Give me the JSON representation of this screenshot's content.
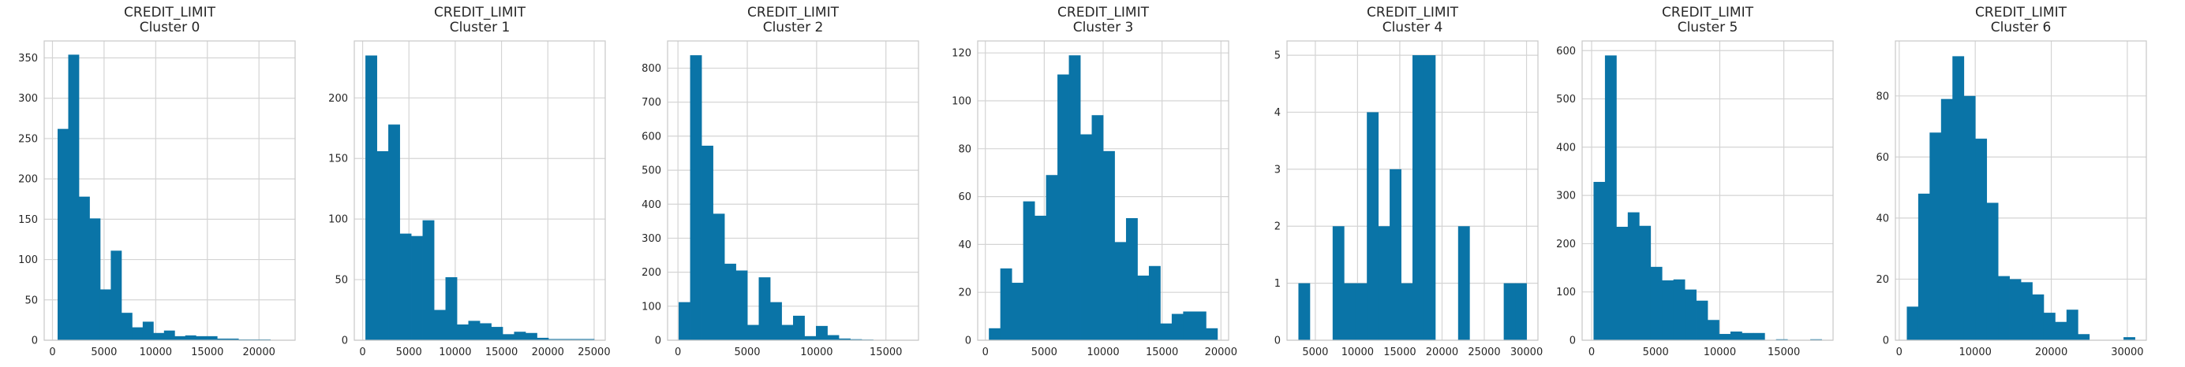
{
  "colors": {
    "bar": "#0a74a7",
    "grid": "#d4d4d4",
    "spine": "#c8c8c8",
    "background": "#ffffff"
  },
  "chart_data": [
    {
      "type": "bar",
      "title": "CREDIT_LIMIT",
      "subtitle": "Cluster 0",
      "grid": true,
      "bins": [
        [
          500,
          1530
        ],
        [
          1530,
          2560
        ],
        [
          2560,
          3590
        ],
        [
          3590,
          4620
        ],
        [
          4620,
          5650
        ],
        [
          5650,
          6680
        ],
        [
          6680,
          7710
        ],
        [
          7710,
          8740
        ],
        [
          8740,
          9770
        ],
        [
          9770,
          10800
        ],
        [
          10800,
          11830
        ],
        [
          11830,
          12860
        ],
        [
          12860,
          13890
        ],
        [
          13890,
          14920
        ],
        [
          14920,
          15950
        ],
        [
          15950,
          16980
        ],
        [
          16980,
          18010
        ],
        [
          18010,
          19040
        ],
        [
          19040,
          20070
        ],
        [
          20070,
          21100
        ]
      ],
      "values": [
        262,
        354,
        178,
        151,
        63,
        111,
        34,
        16,
        23,
        9,
        12,
        5,
        6,
        5,
        5,
        2,
        2,
        1,
        1,
        1
      ],
      "xlim": [
        -800,
        23500
      ],
      "ylim": [
        0,
        371
      ],
      "xticks": [
        0,
        5000,
        10000,
        15000,
        20000
      ],
      "yticks": [
        0,
        50,
        100,
        150,
        200,
        250,
        300,
        350
      ]
    },
    {
      "type": "bar",
      "title": "CREDIT_LIMIT",
      "subtitle": "Cluster 1",
      "grid": true,
      "bins": [
        [
          300,
          1535
        ],
        [
          1535,
          2770
        ],
        [
          2770,
          4005
        ],
        [
          4005,
          5240
        ],
        [
          5240,
          6475
        ],
        [
          6475,
          7710
        ],
        [
          7710,
          8945
        ],
        [
          8945,
          10180
        ],
        [
          10180,
          11415
        ],
        [
          11415,
          12650
        ],
        [
          12650,
          13885
        ],
        [
          13885,
          15120
        ],
        [
          15120,
          16355
        ],
        [
          16355,
          17590
        ],
        [
          17590,
          18825
        ],
        [
          18825,
          20060
        ],
        [
          20060,
          21295
        ],
        [
          21295,
          22530
        ],
        [
          22530,
          23765
        ],
        [
          23765,
          25000
        ]
      ],
      "values": [
        235,
        156,
        178,
        88,
        86,
        99,
        25,
        52,
        13,
        16,
        14,
        11,
        5,
        7,
        6,
        2,
        1,
        1,
        1,
        1
      ],
      "xlim": [
        -900,
        26200
      ],
      "ylim": [
        0,
        247
      ],
      "xticks": [
        0,
        5000,
        10000,
        15000,
        20000,
        25000
      ],
      "yticks": [
        0,
        50,
        100,
        150,
        200
      ]
    },
    {
      "type": "bar",
      "title": "CREDIT_LIMIT",
      "subtitle": "Cluster 2",
      "grid": true,
      "bins": [
        [
          50,
          875
        ],
        [
          875,
          1700
        ],
        [
          1700,
          2525
        ],
        [
          2525,
          3350
        ],
        [
          3350,
          4175
        ],
        [
          4175,
          5000
        ],
        [
          5000,
          5825
        ],
        [
          5825,
          6650
        ],
        [
          6650,
          7475
        ],
        [
          7475,
          8300
        ],
        [
          8300,
          9125
        ],
        [
          9125,
          9950
        ],
        [
          9950,
          10775
        ],
        [
          10775,
          11600
        ],
        [
          11600,
          12425
        ],
        [
          12425,
          13250
        ],
        [
          13250,
          14075
        ],
        [
          14075,
          14900
        ],
        [
          14900,
          15725
        ],
        [
          15725,
          16550
        ]
      ],
      "values": [
        112,
        838,
        572,
        372,
        225,
        205,
        45,
        185,
        112,
        45,
        72,
        12,
        42,
        15,
        5,
        3,
        2,
        1,
        0,
        1
      ],
      "xlim": [
        -750,
        17350
      ],
      "ylim": [
        0,
        880
      ],
      "xticks": [
        0,
        5000,
        10000,
        15000
      ],
      "yticks": [
        0,
        100,
        200,
        300,
        400,
        500,
        600,
        700,
        800
      ]
    },
    {
      "type": "bar",
      "title": "CREDIT_LIMIT",
      "subtitle": "Cluster 3",
      "grid": true,
      "bins": [
        [
          300,
          1270
        ],
        [
          1270,
          2240
        ],
        [
          2240,
          3210
        ],
        [
          3210,
          4180
        ],
        [
          4180,
          5150
        ],
        [
          5150,
          6120
        ],
        [
          6120,
          7090
        ],
        [
          7090,
          8060
        ],
        [
          8060,
          9030
        ],
        [
          9030,
          10000
        ],
        [
          10000,
          10970
        ],
        [
          10970,
          11940
        ],
        [
          11940,
          12910
        ],
        [
          12910,
          13880
        ],
        [
          13880,
          14850
        ],
        [
          14850,
          15820
        ],
        [
          15820,
          16790
        ],
        [
          16790,
          17760
        ],
        [
          17760,
          18730
        ],
        [
          18730,
          19700
        ]
      ],
      "values": [
        5,
        30,
        24,
        58,
        52,
        69,
        111,
        119,
        86,
        94,
        79,
        41,
        51,
        27,
        31,
        7,
        11,
        12,
        12,
        5
      ],
      "xlim": [
        -650,
        20650
      ],
      "ylim": [
        0,
        125
      ],
      "xticks": [
        0,
        5000,
        10000,
        15000,
        20000
      ],
      "yticks": [
        0,
        20,
        40,
        60,
        80,
        100,
        120
      ]
    },
    {
      "type": "bar",
      "title": "CREDIT_LIMIT",
      "subtitle": "Cluster 4",
      "grid": true,
      "bins": [
        [
          3000,
          4350
        ],
        [
          4350,
          5700
        ],
        [
          5700,
          7050
        ],
        [
          7050,
          8400
        ],
        [
          8400,
          9750
        ],
        [
          9750,
          11100
        ],
        [
          11100,
          12450
        ],
        [
          12450,
          13800
        ],
        [
          13800,
          15150
        ],
        [
          15150,
          16500
        ],
        [
          16500,
          17850
        ],
        [
          17850,
          19200
        ],
        [
          19200,
          20550
        ],
        [
          20550,
          21900
        ],
        [
          21900,
          23250
        ],
        [
          23250,
          24600
        ],
        [
          24600,
          25950
        ],
        [
          25950,
          27300
        ],
        [
          27300,
          28650
        ],
        [
          28650,
          30000
        ]
      ],
      "values": [
        1,
        0,
        0,
        2,
        1,
        1,
        4,
        2,
        3,
        1,
        5,
        5,
        0,
        0,
        2,
        0,
        0,
        0,
        1,
        1
      ],
      "xlim": [
        1650,
        31350
      ],
      "ylim": [
        0,
        5.25
      ],
      "xticks": [
        5000,
        10000,
        15000,
        20000,
        25000,
        30000
      ],
      "yticks": [
        0,
        1,
        2,
        3,
        4,
        5
      ]
    },
    {
      "type": "bar",
      "title": "CREDIT_LIMIT",
      "subtitle": "Cluster 5",
      "grid": true,
      "bins": [
        [
          150,
          1040
        ],
        [
          1040,
          1930
        ],
        [
          1930,
          2820
        ],
        [
          2820,
          3710
        ],
        [
          3710,
          4600
        ],
        [
          4600,
          5490
        ],
        [
          5490,
          6380
        ],
        [
          6380,
          7270
        ],
        [
          7270,
          8160
        ],
        [
          8160,
          9050
        ],
        [
          9050,
          9940
        ],
        [
          9940,
          10830
        ],
        [
          10830,
          11720
        ],
        [
          11720,
          12610
        ],
        [
          12610,
          13500
        ],
        [
          13500,
          14390
        ],
        [
          14390,
          15280
        ],
        [
          15280,
          16170
        ],
        [
          16170,
          17060
        ],
        [
          17060,
          17950
        ]
      ],
      "values": [
        328,
        590,
        235,
        265,
        237,
        152,
        124,
        126,
        105,
        82,
        42,
        13,
        18,
        15,
        15,
        0,
        2,
        0,
        0,
        2
      ],
      "xlim": [
        -740,
        18840
      ],
      "ylim": [
        0,
        620
      ],
      "xticks": [
        0,
        5000,
        10000,
        15000
      ],
      "yticks": [
        0,
        100,
        200,
        300,
        400,
        500,
        600
      ]
    },
    {
      "type": "bar",
      "title": "CREDIT_LIMIT",
      "subtitle": "Cluster 6",
      "grid": true,
      "bins": [
        [
          1000,
          2500
        ],
        [
          2500,
          4000
        ],
        [
          4000,
          5500
        ],
        [
          5500,
          7000
        ],
        [
          7000,
          8500
        ],
        [
          8500,
          10000
        ],
        [
          10000,
          11500
        ],
        [
          11500,
          13000
        ],
        [
          13000,
          14500
        ],
        [
          14500,
          16000
        ],
        [
          16000,
          17500
        ],
        [
          17500,
          19000
        ],
        [
          19000,
          20500
        ],
        [
          20500,
          22000
        ],
        [
          22000,
          23500
        ],
        [
          23500,
          25000
        ],
        [
          25000,
          26500
        ],
        [
          26500,
          28000
        ],
        [
          28000,
          29500
        ],
        [
          29500,
          31000
        ]
      ],
      "values": [
        11,
        48,
        68,
        79,
        93,
        80,
        66,
        45,
        21,
        20,
        19,
        15,
        9,
        6,
        10,
        2,
        0,
        0,
        0,
        1
      ],
      "xlim": [
        -500,
        32500
      ],
      "ylim": [
        0,
        98
      ],
      "xticks": [
        0,
        10000,
        20000,
        30000
      ],
      "yticks": [
        0,
        20,
        40,
        60,
        80
      ]
    }
  ]
}
